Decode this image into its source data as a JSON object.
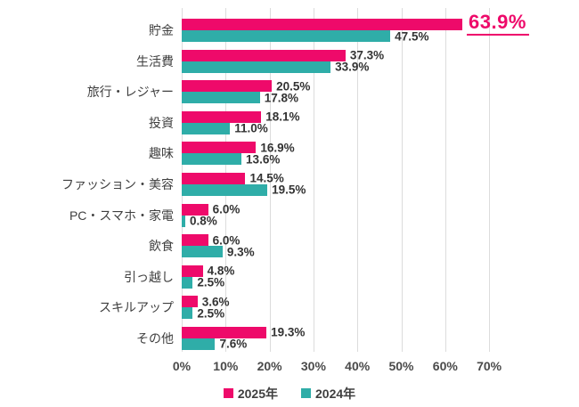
{
  "chart_data": {
    "type": "bar",
    "orientation": "horizontal",
    "title": "",
    "categories": [
      "貯金",
      "生活費",
      "旅行・レジャー",
      "投資",
      "趣味",
      "ファッション・美容",
      "PC・スマホ・家電",
      "飲食",
      "引っ越し",
      "スキルアップ",
      "その他"
    ],
    "series": [
      {
        "name": "2025年",
        "color": "#ee0a6a",
        "values": [
          63.9,
          37.3,
          20.5,
          18.1,
          16.9,
          14.5,
          6.0,
          6.0,
          4.8,
          3.6,
          19.3
        ]
      },
      {
        "name": "2024年",
        "color": "#2fada8",
        "values": [
          47.5,
          33.9,
          17.8,
          11.0,
          13.6,
          19.5,
          0.8,
          9.3,
          2.5,
          2.5,
          7.6
        ]
      }
    ],
    "value_label_format": "percent_one_decimal",
    "x_axis": {
      "min": 0,
      "max": 70,
      "step": 10,
      "ticks": [
        "0%",
        "10%",
        "20%",
        "30%",
        "40%",
        "50%",
        "60%",
        "70%"
      ]
    },
    "grid": true,
    "grid_color": "#dcdcdc",
    "legend": {
      "position": "bottom",
      "items": [
        "2025年",
        "2024年"
      ]
    },
    "highlight": {
      "series": "2025年",
      "category": "貯金",
      "label": "63.9%"
    }
  }
}
